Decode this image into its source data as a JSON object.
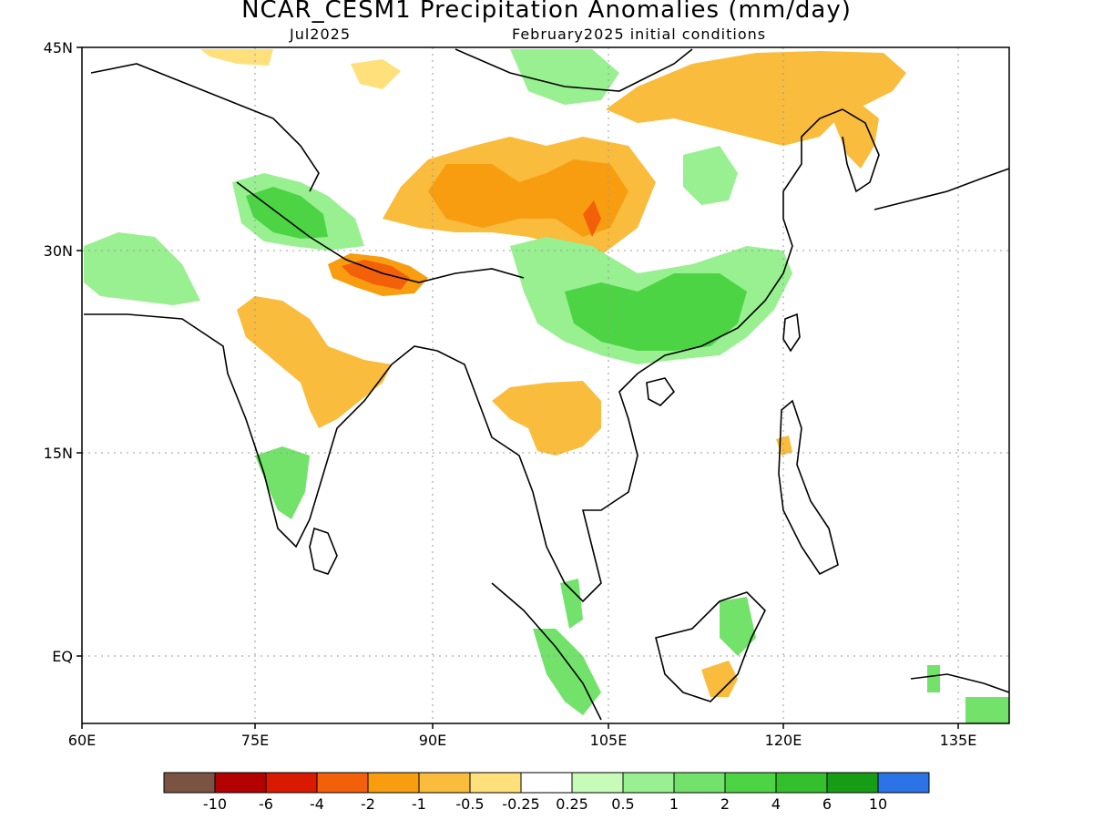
{
  "header": {
    "title": "NCAR_CESM1 Precipitation Anomalies (mm/day)",
    "valid_month": "Jul2025",
    "init": "February2025 initial conditions"
  },
  "axes": {
    "lat_labels": [
      "45N",
      "30N",
      "15N",
      "EQ"
    ],
    "lon_labels": [
      "60E",
      "75E",
      "90E",
      "105E",
      "120E",
      "135E"
    ],
    "lat_values": [
      45,
      30,
      15,
      0
    ],
    "lon_values": [
      60,
      75,
      90,
      105,
      120,
      135
    ],
    "lat_range": [
      -5,
      45
    ],
    "lon_range": [
      60,
      140
    ]
  },
  "colorbar": {
    "colors": [
      "#7a5343",
      "#b30000",
      "#d91a00",
      "#f2600a",
      "#f79d0f",
      "#f9bc3d",
      "#ffe07a",
      "#ffffff",
      "#c8fbb7",
      "#98f090",
      "#72e26a",
      "#4cd444",
      "#33c02c",
      "#179c16",
      "#2b73e6"
    ],
    "labels": [
      "-10",
      "-6",
      "-4",
      "-2",
      "-1",
      "-0.5",
      "-0.25",
      "0.25",
      "0.5",
      "1",
      "2",
      "4",
      "6",
      "10"
    ]
  },
  "palette": {
    "light_orange": "#ffe07a",
    "orange": "#f9bc3d",
    "dark_orange": "#f79d0f",
    "red_orange": "#f2600a",
    "light_green": "#c8fbb7",
    "green": "#98f090",
    "mid_green": "#72e26a",
    "strong_green": "#4cd444",
    "blue": "#2b73e6"
  }
}
